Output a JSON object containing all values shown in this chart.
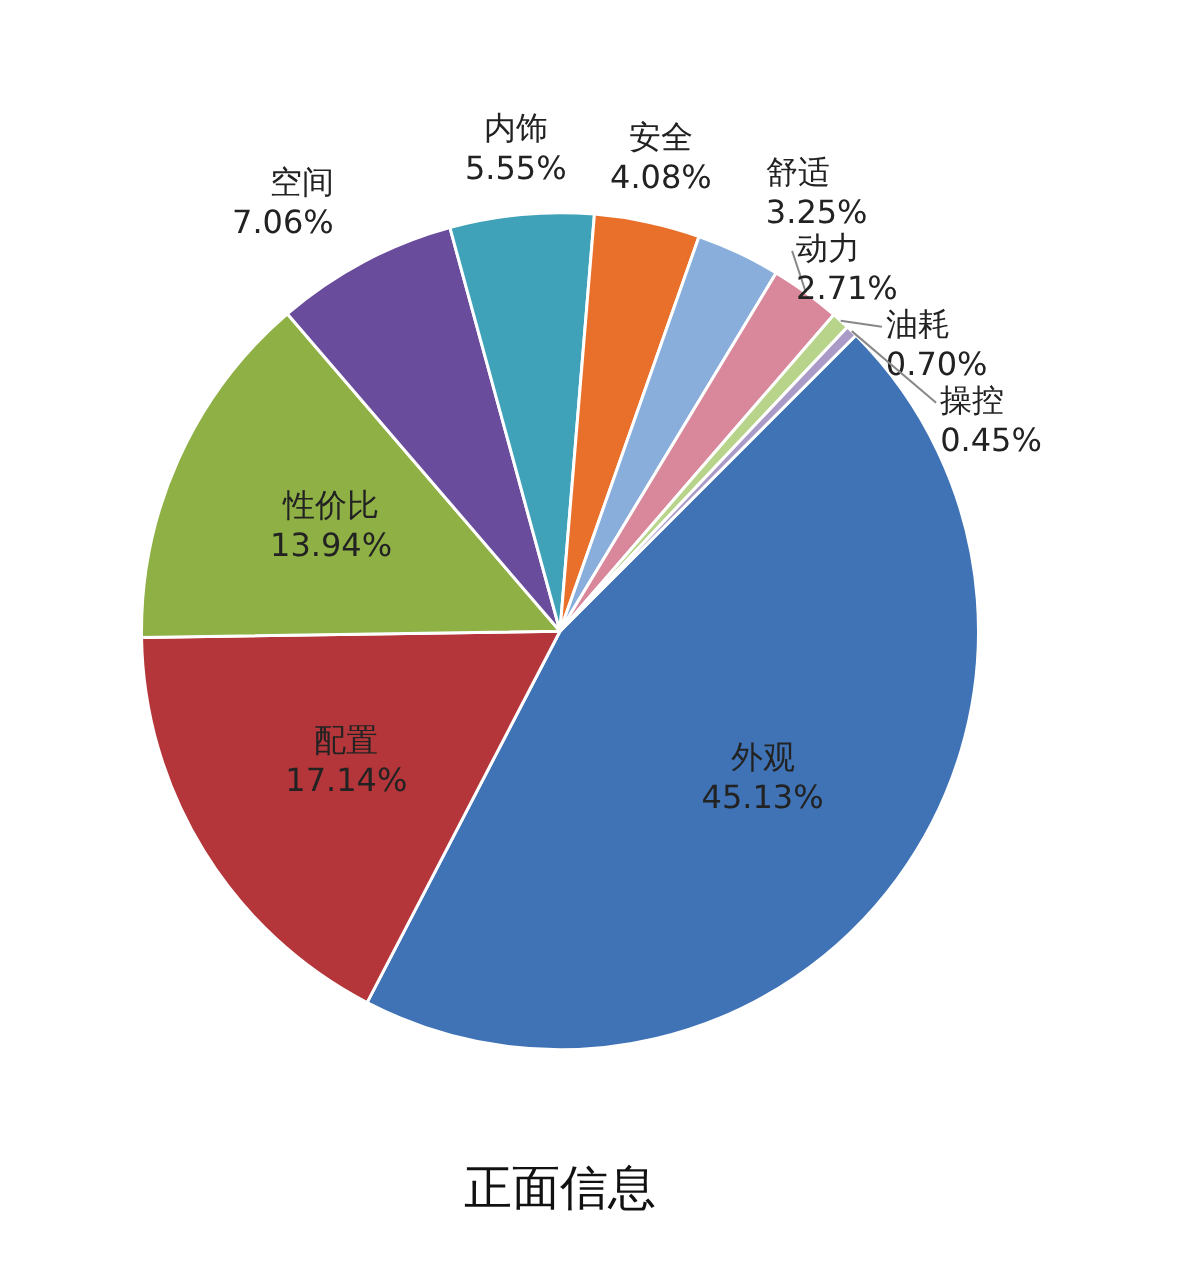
{
  "chart_data": {
    "type": "pie",
    "title": "正面信息",
    "categories": [
      "外观",
      "配置",
      "性价比",
      "空间",
      "内饰",
      "安全",
      "舒适",
      "动力",
      "油耗",
      "操控"
    ],
    "values": [
      45.13,
      17.14,
      13.94,
      7.06,
      5.55,
      4.08,
      3.25,
      2.71,
      0.7,
      0.45
    ],
    "value_labels": [
      "45.13%",
      "17.14%",
      "13.94%",
      "7.06%",
      "5.55%",
      "4.08%",
      "3.25%",
      "2.71%",
      "0.70%",
      "0.45%"
    ],
    "colors": [
      "#3f73b5",
      "#b5363a",
      "#8fb045",
      "#6a4c9c",
      "#3fa2b8",
      "#e8702a",
      "#8aaedc",
      "#d9879a",
      "#b8d48a",
      "#a99ac7"
    ],
    "legend": false
  }
}
